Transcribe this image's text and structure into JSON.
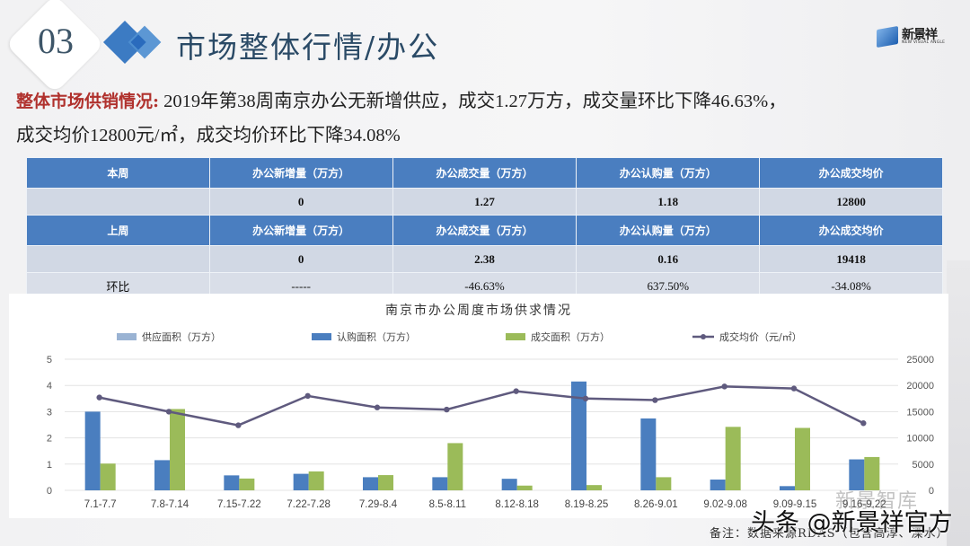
{
  "header": {
    "section_number": "03",
    "title": "市场整体行情/办公",
    "logo_cn": "新景祥",
    "logo_en": "NEW VISUAL ANGLE"
  },
  "summary": {
    "lead": "整体市场供销情况:",
    "line1": " 2019年第38周南京办公无新增供应，成交1.27万方，成交量环比下降46.63%，",
    "line2": "成交均价12800元/㎡，成交均价环比下降34.08%"
  },
  "table": {
    "this_week": {
      "label": "本周",
      "headers": [
        "办公新增量（万方）",
        "办公成交量（万方）",
        "办公认购量（万方）",
        "办公成交均价"
      ],
      "values": [
        "0",
        "1.27",
        "1.18",
        "12800"
      ]
    },
    "last_week": {
      "label": "上周",
      "headers": [
        "办公新增量（万方）",
        "办公成交量（万方）",
        "办公认购量（万方）",
        "办公成交均价"
      ],
      "values": [
        "0",
        "2.38",
        "0.16",
        "19418"
      ]
    },
    "ratio": {
      "label": "环比",
      "values": [
        "-----",
        "-46.63%",
        "637.50%",
        "-34.08%"
      ]
    }
  },
  "chart_data": {
    "type": "bar",
    "title": "南京市办公周度市场供求情况",
    "categories": [
      "7.1-7.7",
      "7.8-7.14",
      "7.15-7.22",
      "7.22-7.28",
      "7.29-8.4",
      "8.5-8.11",
      "8.12-8.18",
      "8.19-8.25",
      "8.26-9.01",
      "9.02-9.08",
      "9.09-9.15",
      "9.16-9.22"
    ],
    "series": [
      {
        "name": "供应面积（万方）",
        "type": "bar",
        "axis": "left",
        "color": "#9ab3d3",
        "values": [
          0,
          0,
          0,
          0,
          0,
          0,
          0,
          0,
          0,
          0,
          0,
          0
        ]
      },
      {
        "name": "认购面积（万方）",
        "type": "bar",
        "axis": "left",
        "color": "#4a7ebf",
        "values": [
          3.0,
          1.15,
          0.57,
          0.63,
          0.5,
          0.5,
          0.44,
          4.15,
          2.74,
          0.41,
          0.16,
          1.18
        ]
      },
      {
        "name": "成交面积（万方）",
        "type": "bar",
        "axis": "left",
        "color": "#9bbb59",
        "values": [
          1.02,
          3.1,
          0.45,
          0.72,
          0.58,
          1.8,
          0.18,
          0.2,
          0.5,
          2.42,
          2.38,
          1.27
        ]
      },
      {
        "name": "成交均价（元/㎡）",
        "type": "line",
        "axis": "right",
        "color": "#5f5a7e",
        "values": [
          17700,
          15000,
          12400,
          18000,
          15800,
          15400,
          18900,
          17500,
          17200,
          19800,
          19418,
          12800
        ]
      }
    ],
    "xlabel": "",
    "ylabel": "",
    "ylim": [
      0,
      5
    ],
    "y_ticks": [
      "0",
      "1",
      "2",
      "3",
      "4",
      "5"
    ],
    "y2lim": [
      0,
      25000
    ],
    "y2_ticks": [
      "0",
      "5000",
      "10000",
      "15000",
      "20000",
      "25000"
    ],
    "grid": true,
    "legend_position": "top"
  },
  "footnote": "备注：数据来源RDAS（包含高淳、溧水）",
  "watermark": {
    "faint": "新景智库",
    "main": "头条 @新景祥官方"
  }
}
